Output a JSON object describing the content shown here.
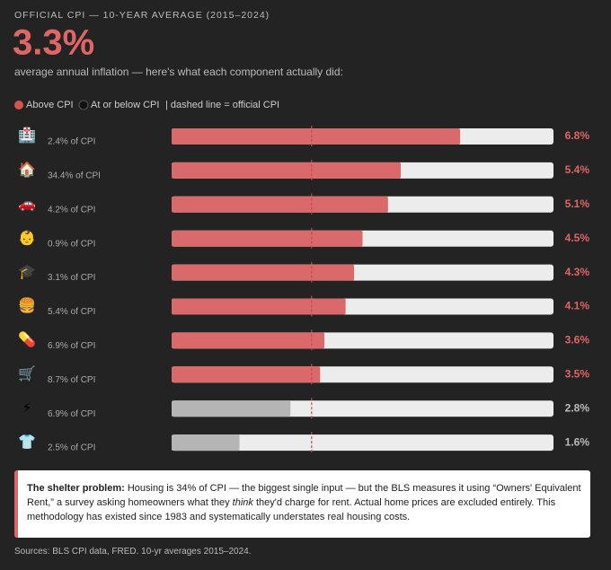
{
  "header": {
    "kicker": "OFFICIAL CPI — 10-YEAR AVERAGE (2015–2024)",
    "subtitle": "average annual inflation — here's what each component actually did:"
  },
  "legend": {
    "above": "Above CPI",
    "below": "At or below CPI",
    "note": "| dashed line = official CPI"
  },
  "chart_data": {
    "type": "bar",
    "orientation": "horizontal",
    "xlim": [
      0,
      9
    ],
    "reference": {
      "value": 3.3,
      "label": "3.3%"
    },
    "above_color": "#d9696a",
    "below_color": "#b5b5b5",
    "track_color": "#ececec",
    "icons": [
      "🏥",
      "🏠",
      "🚗",
      "👶",
      "🎓",
      "🍔",
      "💊",
      "🛒",
      "⚡",
      "👕"
    ],
    "weights": [
      "2.4% of CPI",
      "34.4% of CPI",
      "4.2% of CPI",
      "0.9% of CPI",
      "3.1% of CPI",
      "5.4% of CPI",
      "6.9% of CPI",
      "8.7% of CPI",
      "6.9% of CPI",
      "2.5% of CPI"
    ],
    "values": [
      6.8,
      5.4,
      5.1,
      4.5,
      4.3,
      4.1,
      3.6,
      3.5,
      2.8,
      1.6
    ],
    "value_labels": [
      "6.8%",
      "5.4%",
      "5.1%",
      "4.5%",
      "4.3%",
      "4.1%",
      "3.6%",
      "3.5%",
      "2.8%",
      "1.6%"
    ]
  },
  "callout": {
    "title": "The shelter problem:",
    "text_before": " Housing is 34% of CPI — the biggest single input — but the BLS measures it using “Owners' Equivalent Rent,” a survey asking homeowners what they ",
    "text_emphasis": "think",
    "text_after": " they'd charge for rent. Actual home prices are excluded entirely. This methodology has existed since 1983 and systematically understates real housing costs."
  },
  "footer": {
    "sources": "Sources: BLS CPI data, FRED. 10-yr averages 2015–2024."
  }
}
